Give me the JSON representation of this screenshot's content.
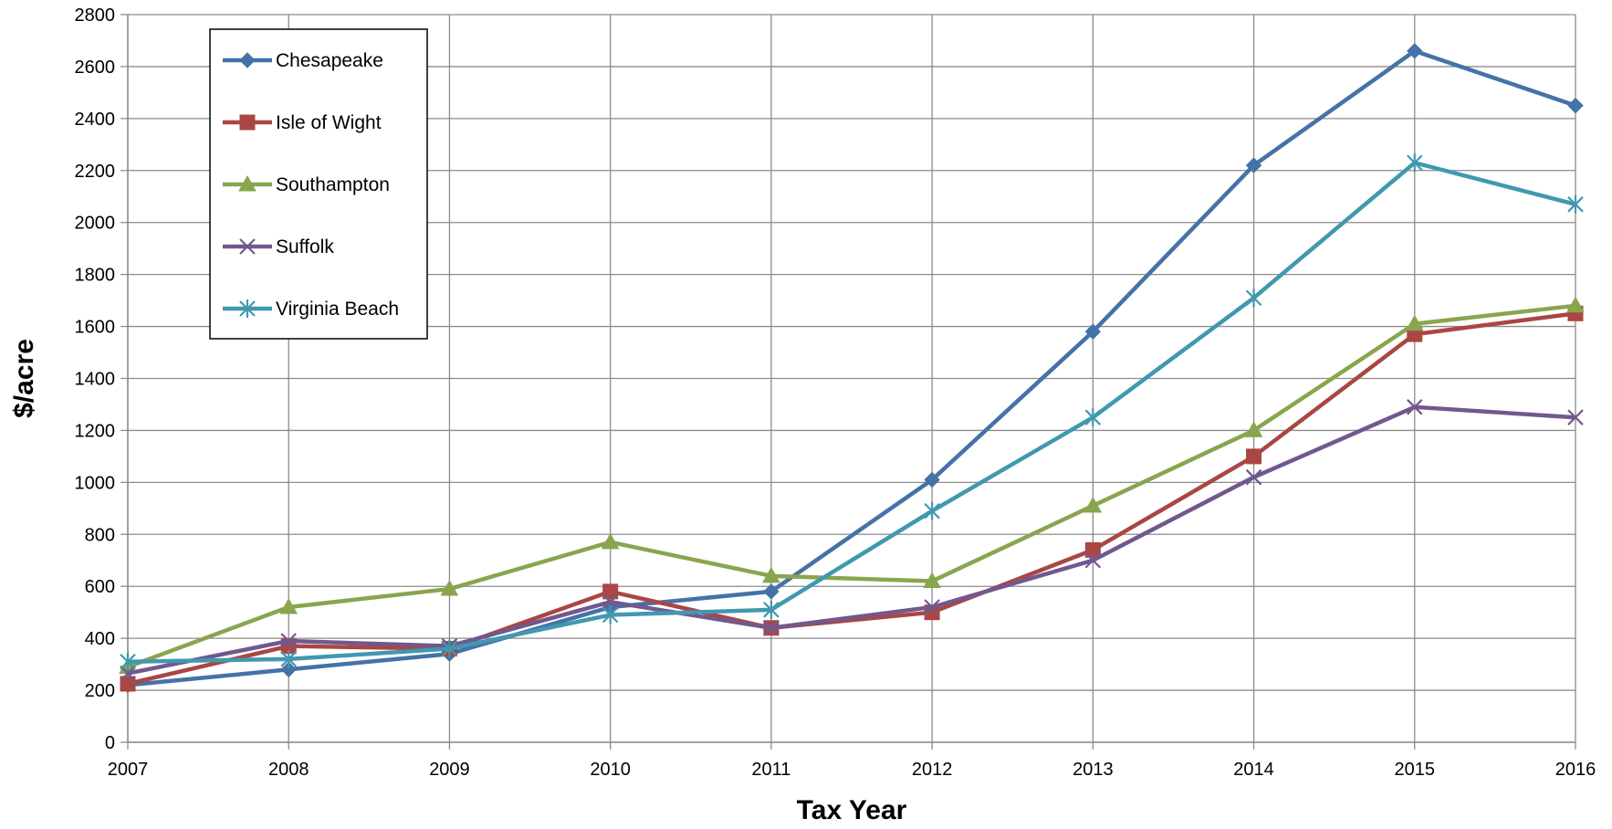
{
  "chart_data": {
    "type": "line",
    "title": "",
    "xlabel": "Tax Year",
    "ylabel": "$/acre",
    "x": [
      2007,
      2008,
      2009,
      2010,
      2011,
      2012,
      2013,
      2014,
      2015,
      2016
    ],
    "x_tick_labels": [
      "2007",
      "2008",
      "2009",
      "2010",
      "2011",
      "2012",
      "2013",
      "2014",
      "2015",
      "2016"
    ],
    "ylim": [
      0,
      2800
    ],
    "y_ticks": [
      0,
      200,
      400,
      600,
      800,
      1000,
      1200,
      1400,
      1600,
      1800,
      2000,
      2200,
      2400,
      2600,
      2800
    ],
    "grid": true,
    "legend_position": "top-left",
    "series": [
      {
        "name": "Chesapeake",
        "color": "#4572A7",
        "marker": "diamond",
        "values": [
          220,
          280,
          340,
          520,
          580,
          1010,
          1580,
          2220,
          2660,
          2450
        ]
      },
      {
        "name": "Isle of Wight",
        "color": "#AA4643",
        "marker": "square",
        "values": [
          225,
          370,
          360,
          580,
          440,
          500,
          740,
          1100,
          1570,
          1650
        ]
      },
      {
        "name": "Southampton",
        "color": "#89A54E",
        "marker": "triangle",
        "values": [
          290,
          520,
          590,
          770,
          640,
          620,
          910,
          1200,
          1610,
          1680
        ]
      },
      {
        "name": "Suffolk",
        "color": "#71588F",
        "marker": "x",
        "values": [
          265,
          390,
          370,
          540,
          440,
          520,
          700,
          1020,
          1290,
          1250
        ]
      },
      {
        "name": "Virginia Beach",
        "color": "#4198AF",
        "marker": "star",
        "values": [
          310,
          320,
          360,
          490,
          510,
          890,
          1250,
          1710,
          2230,
          2070
        ]
      }
    ]
  }
}
